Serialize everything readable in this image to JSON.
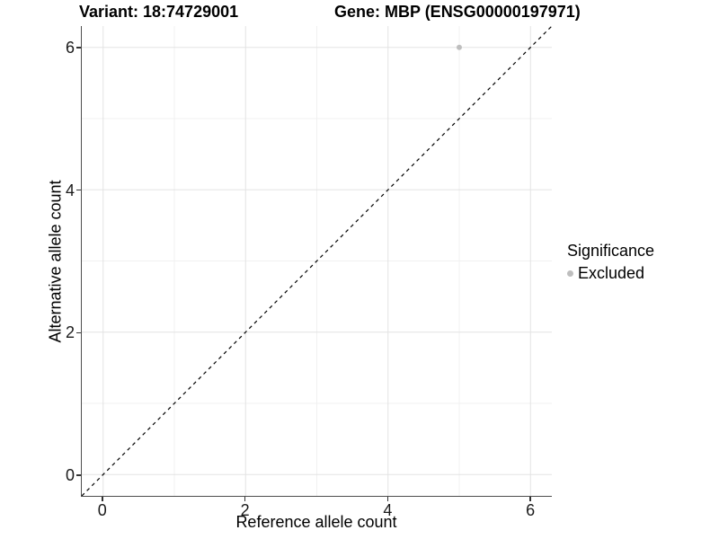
{
  "chart_data": {
    "type": "scatter",
    "title_parts": [
      "Variant: 18:74729001",
      "Gene: MBP (ENSG00000197971)"
    ],
    "xlabel": "Reference allele count",
    "ylabel": "Alternative allele count",
    "xlim": [
      -0.3,
      6.3
    ],
    "ylim": [
      -0.3,
      6.3
    ],
    "x_ticks": [
      0,
      2,
      4,
      6
    ],
    "y_ticks": [
      0,
      2,
      4,
      6
    ],
    "x_minor_ticks": [
      1,
      3,
      5
    ],
    "y_minor_ticks": [
      1,
      3,
      5
    ],
    "grid": true,
    "legend_position": "right",
    "points": [
      {
        "x": 5,
        "y": 6,
        "series": "Excluded"
      }
    ],
    "reference_line": {
      "slope": 1,
      "intercept": 0,
      "style": "dashed"
    },
    "legend": {
      "title": "Significance",
      "entries": [
        {
          "label": "Excluded",
          "marker": "circle"
        }
      ]
    }
  },
  "colors": {
    "point": "#bebebe",
    "legend_marker": "#bebebe",
    "grid_major": "#e3e3e3",
    "grid_minor": "#f0f0f0",
    "axis_line": "#4d4d4d",
    "tick_mark": "#333333",
    "dashed_line": "#000000",
    "text": "#000000"
  }
}
